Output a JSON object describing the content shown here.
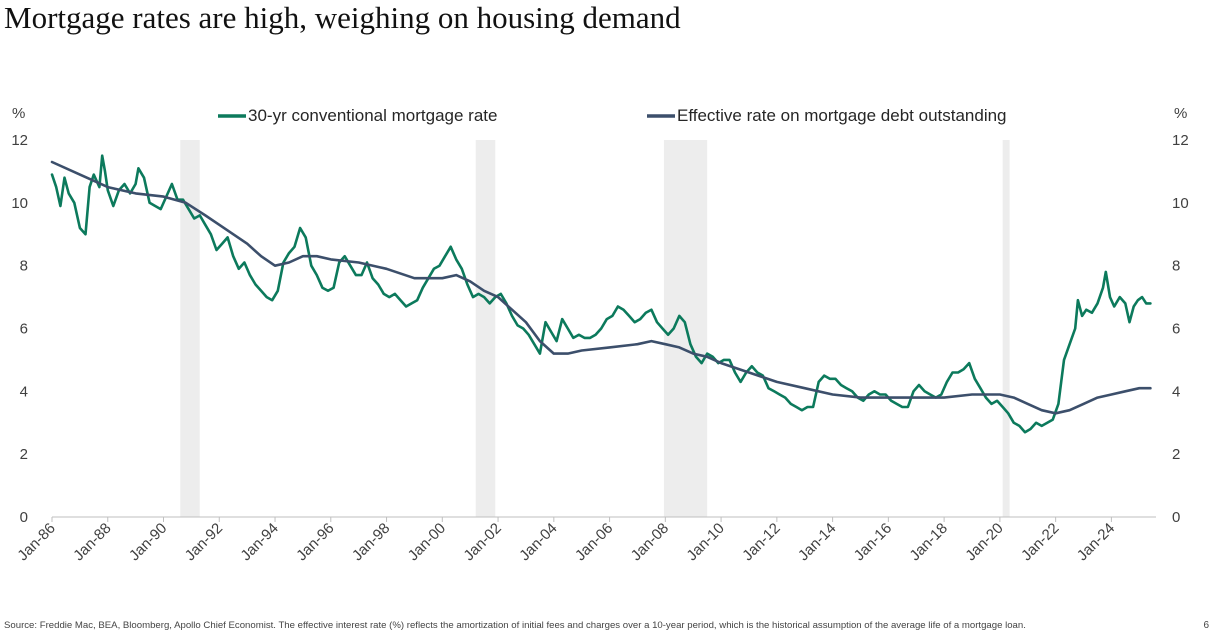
{
  "title": "Mortgage rates are high, weighing on housing demand",
  "footer": {
    "source": "Source: Freddie Mac, BEA, Bloomberg, Apollo Chief Economist. The effective interest rate (%) reflects the amortization of initial fees and charges over a 10-year period, which is the historical assumption of the average life of a mortgage loan.",
    "page_number": "6"
  },
  "chart_data": {
    "type": "line",
    "left_unit": "%",
    "right_unit": "%",
    "ylim": [
      0,
      12
    ],
    "y_ticks": [
      0,
      2,
      4,
      6,
      8,
      10,
      12
    ],
    "xlim": [
      1986.0,
      2025.6
    ],
    "x_ticks": [
      {
        "label": "Jan-86",
        "x": 1986
      },
      {
        "label": "Jan-88",
        "x": 1988
      },
      {
        "label": "Jan-90",
        "x": 1990
      },
      {
        "label": "Jan-92",
        "x": 1992
      },
      {
        "label": "Jan-94",
        "x": 1994
      },
      {
        "label": "Jan-96",
        "x": 1996
      },
      {
        "label": "Jan-98",
        "x": 1998
      },
      {
        "label": "Jan-00",
        "x": 2000
      },
      {
        "label": "Jan-02",
        "x": 2002
      },
      {
        "label": "Jan-04",
        "x": 2004
      },
      {
        "label": "Jan-06",
        "x": 2006
      },
      {
        "label": "Jan-08",
        "x": 2008
      },
      {
        "label": "Jan-10",
        "x": 2010
      },
      {
        "label": "Jan-12",
        "x": 2012
      },
      {
        "label": "Jan-14",
        "x": 2014
      },
      {
        "label": "Jan-16",
        "x": 2016
      },
      {
        "label": "Jan-18",
        "x": 2018
      },
      {
        "label": "Jan-20",
        "x": 2020
      },
      {
        "label": "Jan-22",
        "x": 2022
      },
      {
        "label": "Jan-24",
        "x": 2024
      }
    ],
    "legend_position": "top",
    "recessions": [
      [
        1990.6,
        1991.3
      ],
      [
        2001.2,
        2001.9
      ],
      [
        2007.95,
        2009.5
      ],
      [
        2020.1,
        2020.35
      ]
    ],
    "recession_color": "#ededed",
    "series": [
      {
        "name": "30-yr conventional mortgage rate",
        "color": "#0c7a5c",
        "points": [
          [
            1986.0,
            10.9
          ],
          [
            1986.15,
            10.5
          ],
          [
            1986.3,
            9.9
          ],
          [
            1986.45,
            10.8
          ],
          [
            1986.6,
            10.3
          ],
          [
            1986.8,
            10.0
          ],
          [
            1987.0,
            9.2
          ],
          [
            1987.2,
            9.0
          ],
          [
            1987.35,
            10.5
          ],
          [
            1987.5,
            10.9
          ],
          [
            1987.7,
            10.5
          ],
          [
            1987.8,
            11.5
          ],
          [
            1987.9,
            11.0
          ],
          [
            1988.0,
            10.4
          ],
          [
            1988.2,
            9.9
          ],
          [
            1988.4,
            10.4
          ],
          [
            1988.6,
            10.6
          ],
          [
            1988.8,
            10.3
          ],
          [
            1989.0,
            10.6
          ],
          [
            1989.1,
            11.1
          ],
          [
            1989.3,
            10.8
          ],
          [
            1989.5,
            10.0
          ],
          [
            1989.7,
            9.9
          ],
          [
            1989.9,
            9.8
          ],
          [
            1990.1,
            10.2
          ],
          [
            1990.3,
            10.6
          ],
          [
            1990.5,
            10.1
          ],
          [
            1990.7,
            10.1
          ],
          [
            1990.9,
            9.8
          ],
          [
            1991.1,
            9.5
          ],
          [
            1991.3,
            9.6
          ],
          [
            1991.5,
            9.3
          ],
          [
            1991.7,
            9.0
          ],
          [
            1991.9,
            8.5
          ],
          [
            1992.1,
            8.7
          ],
          [
            1992.3,
            8.9
          ],
          [
            1992.5,
            8.3
          ],
          [
            1992.7,
            7.9
          ],
          [
            1992.9,
            8.1
          ],
          [
            1993.1,
            7.7
          ],
          [
            1993.3,
            7.4
          ],
          [
            1993.5,
            7.2
          ],
          [
            1993.7,
            7.0
          ],
          [
            1993.9,
            6.9
          ],
          [
            1994.1,
            7.2
          ],
          [
            1994.3,
            8.1
          ],
          [
            1994.5,
            8.4
          ],
          [
            1994.7,
            8.6
          ],
          [
            1994.9,
            9.2
          ],
          [
            1995.1,
            8.9
          ],
          [
            1995.3,
            8.0
          ],
          [
            1995.5,
            7.7
          ],
          [
            1995.7,
            7.3
          ],
          [
            1995.9,
            7.2
          ],
          [
            1996.1,
            7.3
          ],
          [
            1996.3,
            8.1
          ],
          [
            1996.5,
            8.3
          ],
          [
            1996.7,
            8.0
          ],
          [
            1996.9,
            7.7
          ],
          [
            1997.1,
            7.7
          ],
          [
            1997.3,
            8.1
          ],
          [
            1997.5,
            7.6
          ],
          [
            1997.7,
            7.4
          ],
          [
            1997.9,
            7.1
          ],
          [
            1998.1,
            7.0
          ],
          [
            1998.3,
            7.1
          ],
          [
            1998.5,
            6.9
          ],
          [
            1998.7,
            6.7
          ],
          [
            1998.9,
            6.8
          ],
          [
            1999.1,
            6.9
          ],
          [
            1999.3,
            7.3
          ],
          [
            1999.5,
            7.6
          ],
          [
            1999.7,
            7.9
          ],
          [
            1999.9,
            8.0
          ],
          [
            2000.1,
            8.3
          ],
          [
            2000.3,
            8.6
          ],
          [
            2000.5,
            8.2
          ],
          [
            2000.7,
            7.9
          ],
          [
            2000.9,
            7.4
          ],
          [
            2001.1,
            7.0
          ],
          [
            2001.3,
            7.1
          ],
          [
            2001.5,
            7.0
          ],
          [
            2001.7,
            6.8
          ],
          [
            2001.9,
            7.0
          ],
          [
            2002.1,
            7.1
          ],
          [
            2002.3,
            6.8
          ],
          [
            2002.5,
            6.4
          ],
          [
            2002.7,
            6.1
          ],
          [
            2002.9,
            6.0
          ],
          [
            2003.1,
            5.8
          ],
          [
            2003.3,
            5.5
          ],
          [
            2003.5,
            5.2
          ],
          [
            2003.7,
            6.2
          ],
          [
            2003.9,
            5.9
          ],
          [
            2004.1,
            5.6
          ],
          [
            2004.3,
            6.3
          ],
          [
            2004.5,
            6.0
          ],
          [
            2004.7,
            5.7
          ],
          [
            2004.9,
            5.8
          ],
          [
            2005.1,
            5.7
          ],
          [
            2005.3,
            5.7
          ],
          [
            2005.5,
            5.8
          ],
          [
            2005.7,
            6.0
          ],
          [
            2005.9,
            6.3
          ],
          [
            2006.1,
            6.4
          ],
          [
            2006.3,
            6.7
          ],
          [
            2006.5,
            6.6
          ],
          [
            2006.7,
            6.4
          ],
          [
            2006.9,
            6.2
          ],
          [
            2007.1,
            6.3
          ],
          [
            2007.3,
            6.5
          ],
          [
            2007.5,
            6.6
          ],
          [
            2007.7,
            6.2
          ],
          [
            2007.9,
            6.0
          ],
          [
            2008.1,
            5.8
          ],
          [
            2008.3,
            6.0
          ],
          [
            2008.5,
            6.4
          ],
          [
            2008.7,
            6.2
          ],
          [
            2008.9,
            5.5
          ],
          [
            2009.1,
            5.1
          ],
          [
            2009.3,
            4.9
          ],
          [
            2009.5,
            5.2
          ],
          [
            2009.7,
            5.1
          ],
          [
            2009.9,
            4.9
          ],
          [
            2010.1,
            5.0
          ],
          [
            2010.3,
            5.0
          ],
          [
            2010.5,
            4.6
          ],
          [
            2010.7,
            4.3
          ],
          [
            2010.9,
            4.6
          ],
          [
            2011.1,
            4.8
          ],
          [
            2011.3,
            4.6
          ],
          [
            2011.5,
            4.5
          ],
          [
            2011.7,
            4.1
          ],
          [
            2011.9,
            4.0
          ],
          [
            2012.1,
            3.9
          ],
          [
            2012.3,
            3.8
          ],
          [
            2012.5,
            3.6
          ],
          [
            2012.7,
            3.5
          ],
          [
            2012.9,
            3.4
          ],
          [
            2013.1,
            3.5
          ],
          [
            2013.3,
            3.5
          ],
          [
            2013.5,
            4.3
          ],
          [
            2013.7,
            4.5
          ],
          [
            2013.9,
            4.4
          ],
          [
            2014.1,
            4.4
          ],
          [
            2014.3,
            4.2
          ],
          [
            2014.5,
            4.1
          ],
          [
            2014.7,
            4.0
          ],
          [
            2014.9,
            3.8
          ],
          [
            2015.1,
            3.7
          ],
          [
            2015.3,
            3.9
          ],
          [
            2015.5,
            4.0
          ],
          [
            2015.7,
            3.9
          ],
          [
            2015.9,
            3.9
          ],
          [
            2016.1,
            3.7
          ],
          [
            2016.3,
            3.6
          ],
          [
            2016.5,
            3.5
          ],
          [
            2016.7,
            3.5
          ],
          [
            2016.9,
            4.0
          ],
          [
            2017.1,
            4.2
          ],
          [
            2017.3,
            4.0
          ],
          [
            2017.5,
            3.9
          ],
          [
            2017.7,
            3.8
          ],
          [
            2017.9,
            3.9
          ],
          [
            2018.1,
            4.3
          ],
          [
            2018.3,
            4.6
          ],
          [
            2018.5,
            4.6
          ],
          [
            2018.7,
            4.7
          ],
          [
            2018.9,
            4.9
          ],
          [
            2019.1,
            4.4
          ],
          [
            2019.3,
            4.1
          ],
          [
            2019.5,
            3.8
          ],
          [
            2019.7,
            3.6
          ],
          [
            2019.9,
            3.7
          ],
          [
            2020.1,
            3.5
          ],
          [
            2020.3,
            3.3
          ],
          [
            2020.5,
            3.0
          ],
          [
            2020.7,
            2.9
          ],
          [
            2020.9,
            2.7
          ],
          [
            2021.1,
            2.8
          ],
          [
            2021.3,
            3.0
          ],
          [
            2021.5,
            2.9
          ],
          [
            2021.7,
            3.0
          ],
          [
            2021.9,
            3.1
          ],
          [
            2022.1,
            3.6
          ],
          [
            2022.3,
            5.0
          ],
          [
            2022.5,
            5.5
          ],
          [
            2022.7,
            6.0
          ],
          [
            2022.8,
            6.9
          ],
          [
            2022.95,
            6.4
          ],
          [
            2023.1,
            6.6
          ],
          [
            2023.3,
            6.5
          ],
          [
            2023.5,
            6.8
          ],
          [
            2023.7,
            7.3
          ],
          [
            2023.8,
            7.8
          ],
          [
            2023.95,
            7.0
          ],
          [
            2024.1,
            6.7
          ],
          [
            2024.3,
            7.0
          ],
          [
            2024.5,
            6.8
          ],
          [
            2024.65,
            6.2
          ],
          [
            2024.8,
            6.7
          ],
          [
            2024.95,
            6.9
          ],
          [
            2025.1,
            7.0
          ],
          [
            2025.25,
            6.8
          ],
          [
            2025.4,
            6.8
          ]
        ]
      },
      {
        "name": "Effective rate on mortgage debt outstanding",
        "color": "#3c4f6b",
        "points": [
          [
            1986.0,
            11.3
          ],
          [
            1987.0,
            10.9
          ],
          [
            1988.0,
            10.5
          ],
          [
            1989.0,
            10.3
          ],
          [
            1990.0,
            10.2
          ],
          [
            1990.8,
            10.0
          ],
          [
            1991.5,
            9.6
          ],
          [
            1992.0,
            9.3
          ],
          [
            1993.0,
            8.7
          ],
          [
            1993.5,
            8.3
          ],
          [
            1994.0,
            8.0
          ],
          [
            1994.5,
            8.1
          ],
          [
            1995.0,
            8.3
          ],
          [
            1995.5,
            8.3
          ],
          [
            1996.0,
            8.2
          ],
          [
            1997.0,
            8.1
          ],
          [
            1998.0,
            7.9
          ],
          [
            1999.0,
            7.6
          ],
          [
            2000.0,
            7.6
          ],
          [
            2000.5,
            7.7
          ],
          [
            2001.0,
            7.5
          ],
          [
            2001.5,
            7.2
          ],
          [
            2002.0,
            7.0
          ],
          [
            2002.5,
            6.6
          ],
          [
            2003.0,
            6.2
          ],
          [
            2003.5,
            5.6
          ],
          [
            2004.0,
            5.2
          ],
          [
            2004.5,
            5.2
          ],
          [
            2005.0,
            5.3
          ],
          [
            2006.0,
            5.4
          ],
          [
            2007.0,
            5.5
          ],
          [
            2007.5,
            5.6
          ],
          [
            2008.0,
            5.5
          ],
          [
            2008.5,
            5.4
          ],
          [
            2009.0,
            5.2
          ],
          [
            2009.5,
            5.1
          ],
          [
            2010.0,
            4.9
          ],
          [
            2011.0,
            4.6
          ],
          [
            2012.0,
            4.3
          ],
          [
            2013.0,
            4.1
          ],
          [
            2014.0,
            3.9
          ],
          [
            2015.0,
            3.8
          ],
          [
            2016.0,
            3.8
          ],
          [
            2017.0,
            3.8
          ],
          [
            2018.0,
            3.8
          ],
          [
            2019.0,
            3.9
          ],
          [
            2020.0,
            3.9
          ],
          [
            2020.5,
            3.8
          ],
          [
            2021.0,
            3.6
          ],
          [
            2021.5,
            3.4
          ],
          [
            2022.0,
            3.3
          ],
          [
            2022.5,
            3.4
          ],
          [
            2023.0,
            3.6
          ],
          [
            2023.5,
            3.8
          ],
          [
            2024.0,
            3.9
          ],
          [
            2024.5,
            4.0
          ],
          [
            2025.0,
            4.1
          ],
          [
            2025.4,
            4.1
          ]
        ]
      }
    ]
  }
}
